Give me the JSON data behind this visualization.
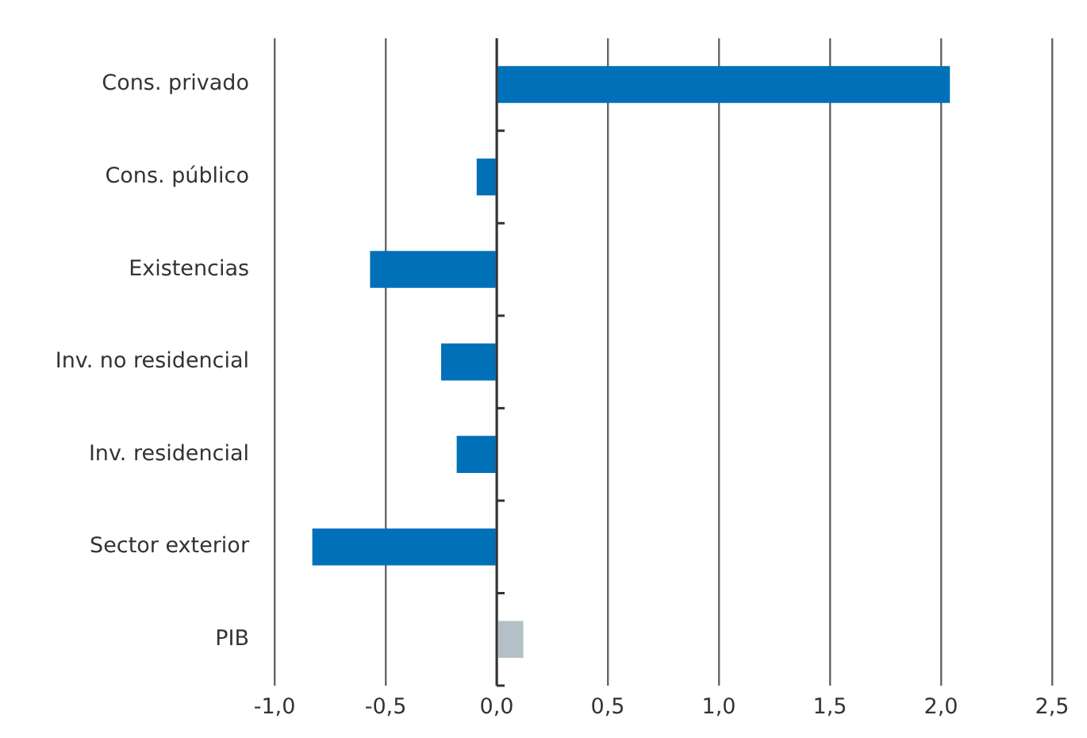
{
  "chart_data": {
    "type": "bar",
    "orientation": "horizontal",
    "categories": [
      "Cons. privado",
      "Cons. público",
      "Existencias",
      "Inv. no residencial",
      "Inv. residencial",
      "Sector exterior",
      "PIB"
    ],
    "values": [
      2.04,
      -0.09,
      -0.57,
      -0.25,
      -0.18,
      -0.83,
      0.12
    ],
    "colors": [
      "#0070b8",
      "#0070b8",
      "#0070b8",
      "#0070b8",
      "#0070b8",
      "#0070b8",
      "#b4c0c5"
    ],
    "xlim": [
      -1,
      2.5
    ],
    "xticks": [
      {
        "value": -1,
        "label": "-1,0"
      },
      {
        "value": -0.5,
        "label": "-0,5"
      },
      {
        "value": 0,
        "label": "0,0"
      },
      {
        "value": 0.5,
        "label": "0,5"
      },
      {
        "value": 1,
        "label": "1,0"
      },
      {
        "value": 1.5,
        "label": "1,5"
      },
      {
        "value": 2,
        "label": "2,0"
      },
      {
        "value": 2.5,
        "label": "2,5"
      }
    ],
    "grid": "x",
    "legend": false
  }
}
